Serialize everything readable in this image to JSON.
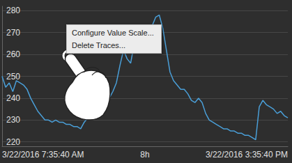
{
  "chart_data": {
    "type": "line",
    "categories": [
      "3/22/2016 7:35:40 AM",
      null,
      null,
      null,
      null,
      null,
      null,
      null,
      null,
      null,
      null,
      null,
      null,
      null,
      null,
      null,
      null,
      null,
      null,
      null,
      null,
      null,
      null,
      null,
      null,
      null,
      null,
      null,
      null,
      null,
      null,
      null,
      null,
      null,
      null,
      null,
      null,
      null,
      null,
      null,
      "8h",
      null,
      null,
      null,
      null,
      null,
      null,
      null,
      null,
      null,
      null,
      null,
      null,
      null,
      null,
      null,
      null,
      null,
      null,
      null,
      null,
      null,
      null,
      null,
      null,
      null,
      null,
      null,
      null,
      null,
      null,
      null,
      null,
      null,
      null,
      null,
      null,
      null,
      null,
      null,
      "3/22/2016 3:35:40 PM"
    ],
    "values": [
      250,
      245,
      247,
      243,
      248,
      247,
      246,
      244,
      240,
      237,
      234,
      232,
      230,
      230,
      229,
      230,
      229,
      229,
      228,
      228,
      227,
      227,
      226,
      229,
      231,
      233,
      235,
      236,
      237,
      238,
      240,
      243,
      247,
      255,
      262,
      258,
      256,
      265,
      266,
      263,
      270,
      269,
      273,
      277,
      278,
      272,
      262,
      252,
      248,
      246,
      244,
      244,
      242,
      239,
      238,
      240,
      238,
      233,
      230,
      229,
      228,
      227,
      226,
      226,
      225,
      225,
      224,
      224,
      223,
      223,
      222,
      221,
      236,
      239,
      237,
      236,
      235,
      233,
      234,
      232,
      231
    ],
    "color": "#4a9fd8",
    "ylim": [
      218,
      282
    ],
    "yticks": [
      220,
      230,
      240,
      250,
      260,
      270,
      280
    ],
    "grid": true,
    "annotations": [
      "Configure Value Scale...",
      "Delete Traces..."
    ]
  }
}
